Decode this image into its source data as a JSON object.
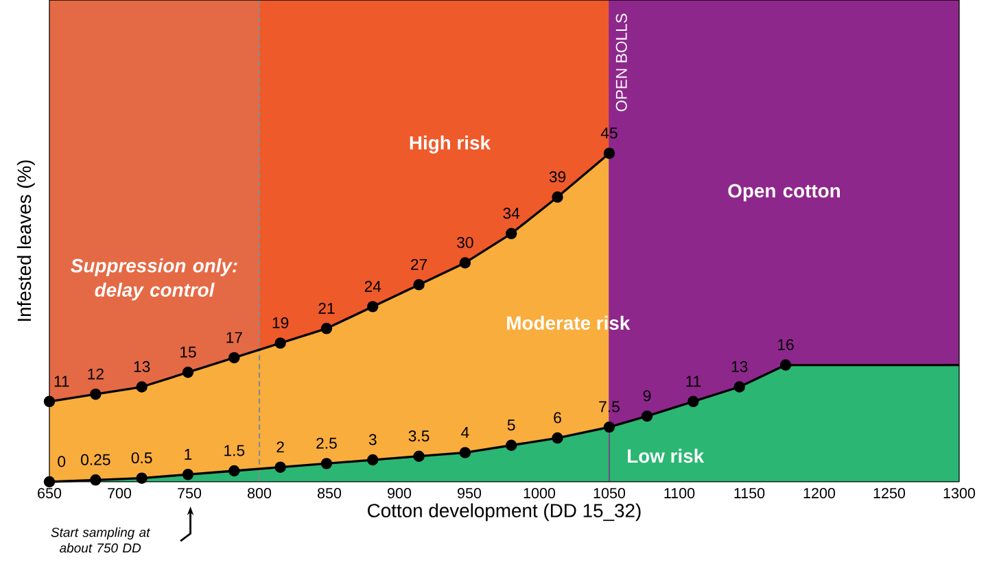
{
  "chart_data": {
    "type": "area",
    "xlabel": "Cotton development (DD 15_32)",
    "ylabel": "Infested leaves (%)",
    "xlim": [
      650,
      1300
    ],
    "xticks": [
      650,
      700,
      750,
      800,
      850,
      900,
      950,
      1000,
      1050,
      1100,
      1150,
      1200,
      1250,
      1300
    ],
    "ylim": [
      0,
      66
    ],
    "tick_labels": "x",
    "series": [
      {
        "color": "#f9ad3d",
        "x": [
          650,
          683,
          716,
          749,
          782,
          815,
          848,
          881,
          914,
          947,
          980,
          1013,
          1050
        ],
        "values": [
          11,
          12,
          13,
          15,
          17,
          19,
          21,
          24,
          27,
          30,
          34,
          39,
          45
        ],
        "value_labels": [
          "11",
          "12",
          "13",
          "15",
          "17",
          "19",
          "21",
          "24",
          "27",
          "30",
          "34",
          "39",
          "45"
        ]
      },
      {
        "color": "#2bb673",
        "x": [
          650,
          683,
          716,
          749,
          782,
          815,
          848,
          881,
          914,
          947,
          980,
          1013,
          1050,
          1077,
          1110,
          1143,
          1176,
          1300
        ],
        "values": [
          0,
          0.25,
          0.5,
          1,
          1.5,
          2,
          2.5,
          3,
          3.5,
          4,
          5,
          6,
          7.5,
          9,
          11,
          13,
          16,
          16
        ],
        "value_labels": [
          "0",
          "0.25",
          "0.5",
          "1",
          "1.5",
          "2",
          "2.5",
          "3",
          "3.5",
          "4",
          "5",
          "6",
          "7.5",
          "9",
          "11",
          "13",
          "16",
          null
        ]
      }
    ],
    "marker": "circle",
    "bands": [
      {
        "axis": "y",
        "from": 0,
        "to": 66,
        "color": "#ef5a2b"
      },
      {
        "axis": "x",
        "from": 1050,
        "to": 1300,
        "label": "Open cotton",
        "color": "#8e278c"
      },
      {
        "axis": "x",
        "from": 650,
        "to": 800,
        "label": "Suppression only: delay control",
        "color": "#e46a45"
      }
    ],
    "ref_lines": [
      {
        "axis": "x",
        "value": 1050,
        "label": "OPEN BOLLS",
        "color": "#8e278c"
      },
      {
        "axis": "x",
        "value": 800,
        "color": "#8a8a8a",
        "line_style": "dashed"
      }
    ],
    "annotations": [
      "High risk",
      "Moderate risk",
      "Low risk",
      "Start sampling at about 750 DD"
    ]
  }
}
